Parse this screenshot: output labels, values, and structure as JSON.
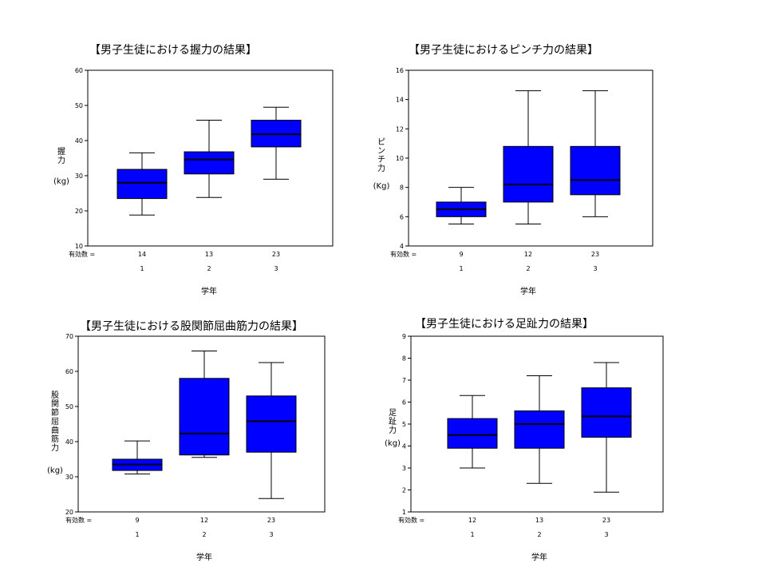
{
  "chart_data": [
    {
      "type": "box",
      "title": "【男子生徒における握力の結果】",
      "ylabel_chars": [
        "握",
        "力"
      ],
      "yunit": "(kg)",
      "xlabel": "学年",
      "n_label": "有効数 =",
      "ylim": [
        10,
        60
      ],
      "yticks": [
        10,
        20,
        30,
        40,
        50,
        60
      ],
      "categories": [
        "1",
        "2",
        "3"
      ],
      "n": [
        "14",
        "13",
        "23"
      ],
      "boxes": [
        {
          "min": 18.8,
          "q1": 23.5,
          "median": 28.0,
          "q3": 31.8,
          "max": 36.5
        },
        {
          "min": 23.8,
          "q1": 30.5,
          "median": 34.6,
          "q3": 36.8,
          "max": 45.8
        },
        {
          "min": 29.0,
          "q1": 38.2,
          "median": 41.8,
          "q3": 45.8,
          "max": 49.5
        }
      ]
    },
    {
      "type": "box",
      "title": "【男子生徒におけるピンチ力の結果】",
      "ylabel_chars": [
        "ピ",
        "ン",
        "チ",
        "力"
      ],
      "yunit": "(Kg)",
      "xlabel": "学年",
      "n_label": "有効数 =",
      "ylim": [
        4,
        16
      ],
      "yticks": [
        4,
        6,
        8,
        10,
        12,
        14,
        16
      ],
      "categories": [
        "1",
        "2",
        "3"
      ],
      "n": [
        "9",
        "12",
        "23"
      ],
      "boxes": [
        {
          "min": 5.5,
          "q1": 6.0,
          "median": 6.5,
          "q3": 7.0,
          "max": 8.0
        },
        {
          "min": 5.5,
          "q1": 7.0,
          "median": 8.2,
          "q3": 10.8,
          "max": 14.6
        },
        {
          "min": 6.0,
          "q1": 7.5,
          "median": 8.5,
          "q3": 10.8,
          "max": 14.6
        }
      ]
    },
    {
      "type": "box",
      "title": "【男子生徒における股関節屈曲筋力の結果】",
      "ylabel_chars": [
        "股",
        "関",
        "節",
        "屈",
        "曲",
        "筋",
        "力"
      ],
      "yunit": "(kg)",
      "xlabel": "学年",
      "n_label": "有効数 =",
      "ylim": [
        20,
        70
      ],
      "yticks": [
        20,
        30,
        40,
        50,
        60,
        70
      ],
      "categories": [
        "1",
        "2",
        "3"
      ],
      "n": [
        "9",
        "12",
        "23"
      ],
      "boxes": [
        {
          "min": 30.8,
          "q1": 31.8,
          "median": 33.5,
          "q3": 35.0,
          "max": 40.2
        },
        {
          "min": 35.5,
          "q1": 36.2,
          "median": 42.3,
          "q3": 58.0,
          "max": 65.8
        },
        {
          "min": 23.8,
          "q1": 37.0,
          "median": 45.8,
          "q3": 53.0,
          "max": 62.5
        }
      ]
    },
    {
      "type": "box",
      "title": "【男子生徒における足趾力の結果】",
      "ylabel_chars": [
        "足",
        "趾",
        "力"
      ],
      "yunit": "(kg)",
      "xlabel": "学年",
      "n_label": "有効数 =",
      "ylim": [
        1,
        9
      ],
      "yticks": [
        1,
        2,
        3,
        4,
        5,
        6,
        7,
        8,
        9
      ],
      "categories": [
        "1",
        "2",
        "3"
      ],
      "n": [
        "12",
        "13",
        "23"
      ],
      "boxes": [
        {
          "min": 3.0,
          "q1": 3.9,
          "median": 4.5,
          "q3": 5.25,
          "max": 6.3
        },
        {
          "min": 2.3,
          "q1": 3.9,
          "median": 5.0,
          "q3": 5.6,
          "max": 7.2
        },
        {
          "min": 1.9,
          "q1": 4.4,
          "median": 5.35,
          "q3": 6.65,
          "max": 7.8
        }
      ]
    }
  ],
  "style": {
    "box_fill": "#0000ff",
    "line": "#000000",
    "bg": "#ffffff"
  }
}
